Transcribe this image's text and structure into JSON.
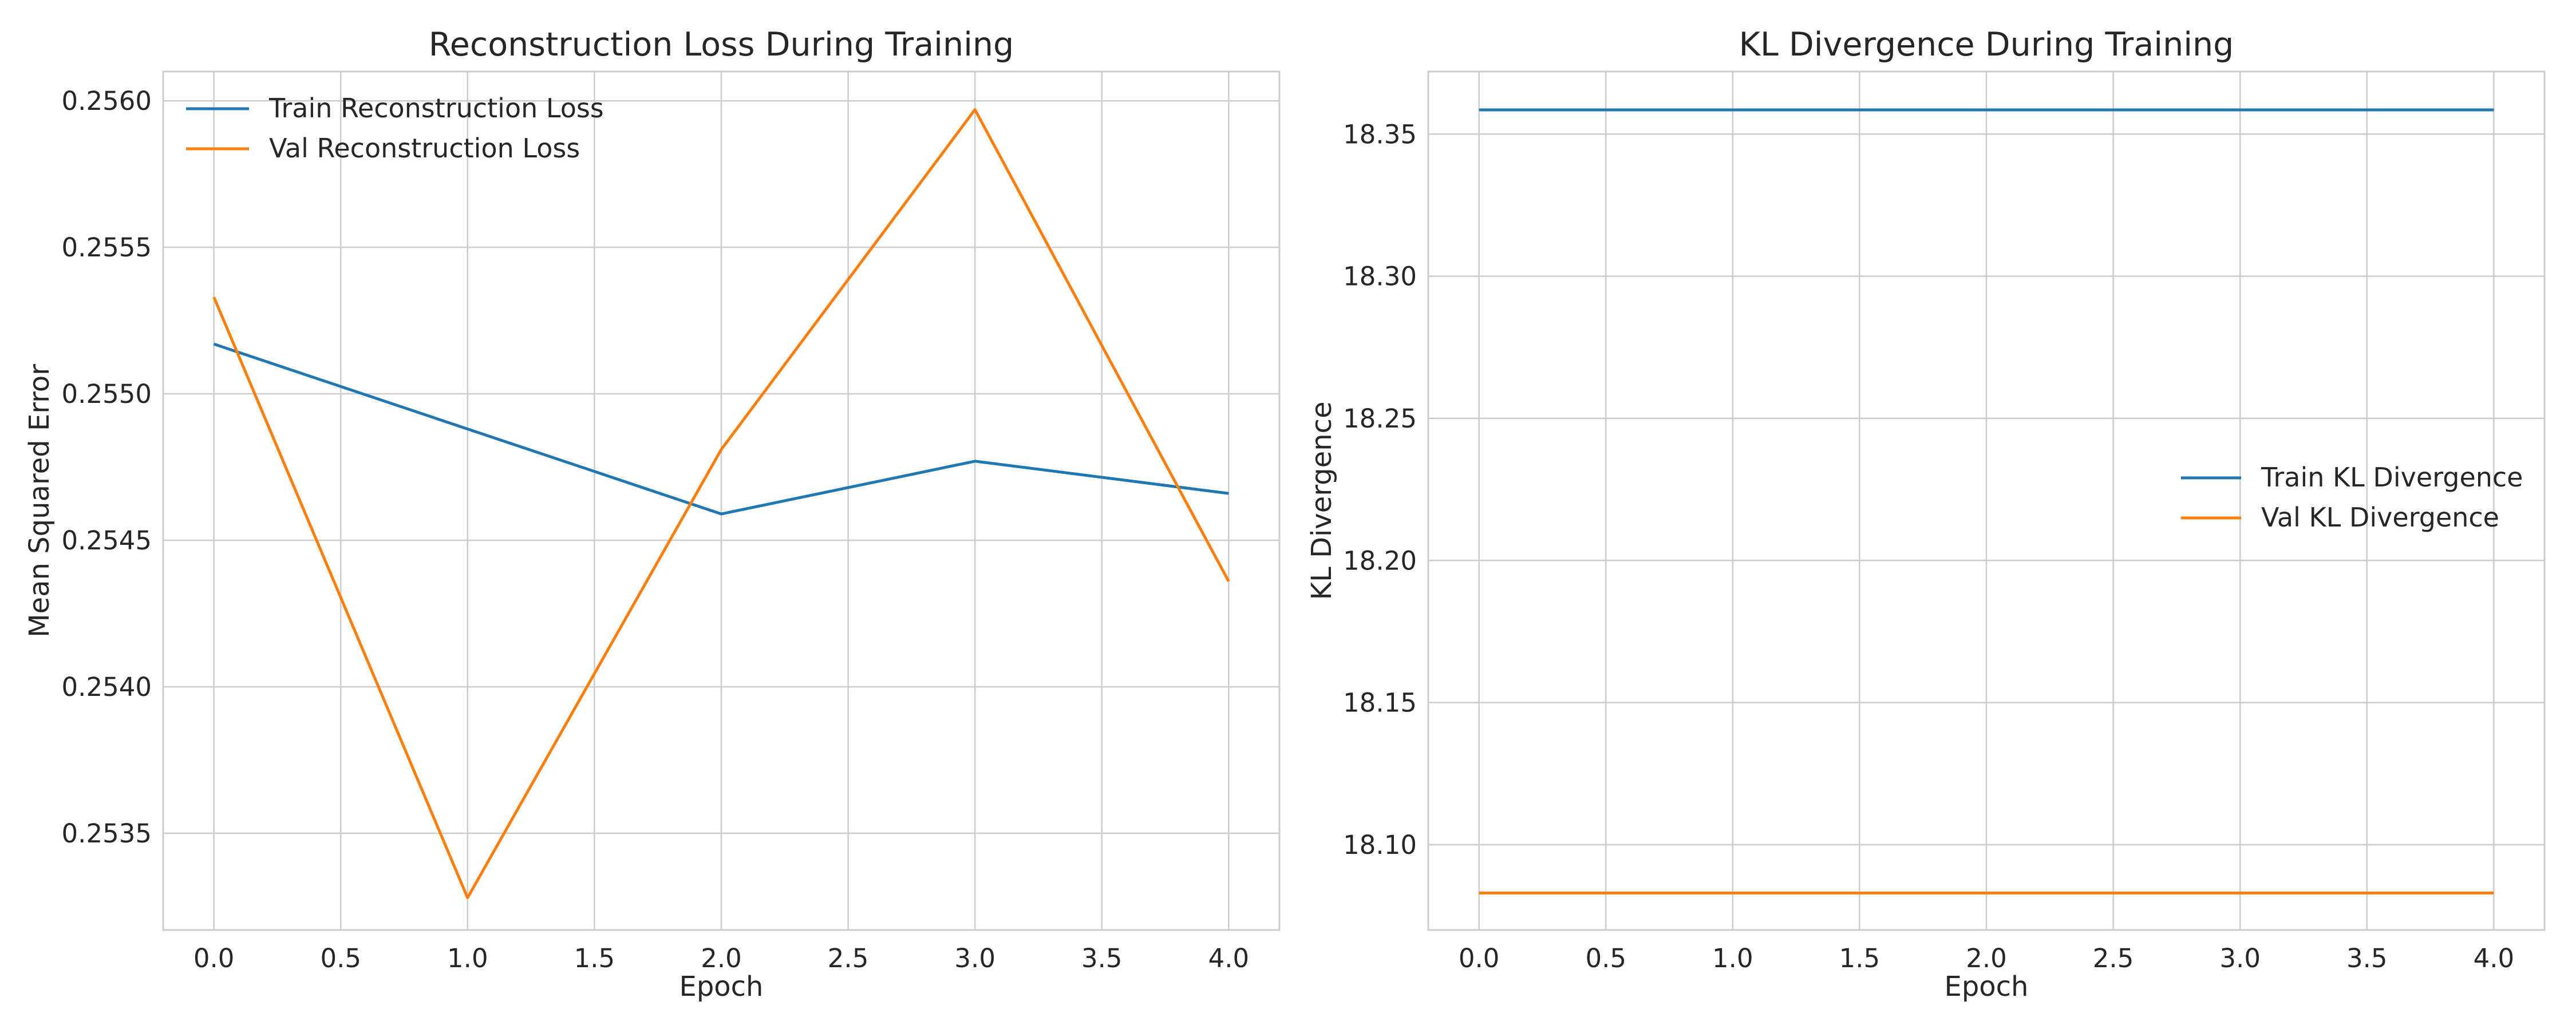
{
  "chart_data": [
    {
      "type": "line",
      "title": "Reconstruction Loss During Training",
      "xlabel": "Epoch",
      "ylabel": "Mean Squared Error",
      "xlim": [
        -0.2,
        4.2
      ],
      "ylim": [
        0.25317,
        0.2561
      ],
      "xticks": [
        0.0,
        0.5,
        1.0,
        1.5,
        2.0,
        2.5,
        3.0,
        3.5,
        4.0
      ],
      "xtick_labels": [
        "0.0",
        "0.5",
        "1.0",
        "1.5",
        "2.0",
        "2.5",
        "3.0",
        "3.5",
        "4.0"
      ],
      "yticks": [
        0.2535,
        0.254,
        0.2545,
        0.255,
        0.2555,
        0.256
      ],
      "ytick_labels": [
        "0.2535",
        "0.2540",
        "0.2545",
        "0.2550",
        "0.2555",
        "0.2560"
      ],
      "grid": true,
      "legend_position": "upper-left",
      "x": [
        0,
        1,
        2,
        3,
        4
      ],
      "series": [
        {
          "name": "Train Reconstruction Loss",
          "color": "#1f77b4",
          "values": [
            0.25517,
            0.25488,
            0.25459,
            0.25477,
            0.25466
          ]
        },
        {
          "name": "Val Reconstruction Loss",
          "color": "#ff7f0e",
          "values": [
            0.25533,
            0.25328,
            0.25481,
            0.25597,
            0.25436
          ]
        }
      ]
    },
    {
      "type": "line",
      "title": "KL Divergence During Training",
      "xlabel": "Epoch",
      "ylabel": "KL Divergence",
      "xlim": [
        -0.2,
        4.2
      ],
      "ylim": [
        18.07,
        18.372
      ],
      "xticks": [
        0.0,
        0.5,
        1.0,
        1.5,
        2.0,
        2.5,
        3.0,
        3.5,
        4.0
      ],
      "xtick_labels": [
        "0.0",
        "0.5",
        "1.0",
        "1.5",
        "2.0",
        "2.5",
        "3.0",
        "3.5",
        "4.0"
      ],
      "yticks": [
        18.1,
        18.15,
        18.2,
        18.25,
        18.3,
        18.35
      ],
      "ytick_labels": [
        "18.10",
        "18.15",
        "18.20",
        "18.25",
        "18.30",
        "18.35"
      ],
      "grid": true,
      "legend_position": "center-right",
      "x": [
        0,
        1,
        2,
        3,
        4
      ],
      "series": [
        {
          "name": "Train KL Divergence",
          "color": "#1f77b4",
          "values": [
            18.3585,
            18.3585,
            18.3585,
            18.3585,
            18.3585
          ]
        },
        {
          "name": "Val KL Divergence",
          "color": "#ff7f0e",
          "values": [
            18.083,
            18.083,
            18.083,
            18.083,
            18.083
          ]
        }
      ]
    }
  ]
}
